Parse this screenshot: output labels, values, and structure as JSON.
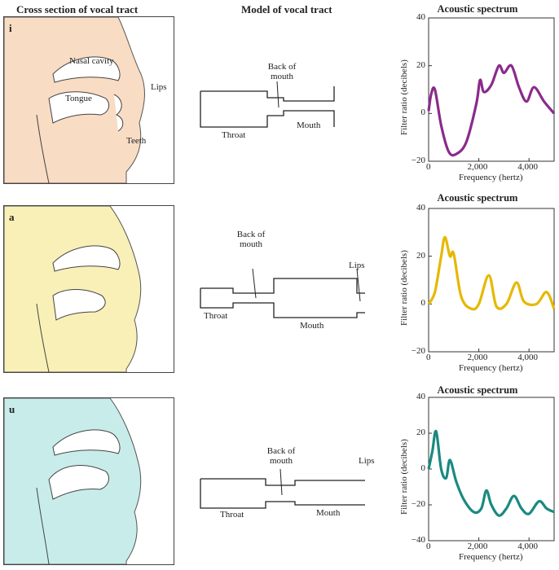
{
  "headers": {
    "col1": "Cross section of vocal tract",
    "col2": "Model of vocal tract",
    "col3": "Acoustic spectrum"
  },
  "rows": [
    {
      "vowel": "i",
      "color": "#f8dcc4",
      "anatomy_labels": [
        "Nasal cavity",
        "Tongue",
        "Lips",
        "Teeth"
      ],
      "model_labels": {
        "back": "Back of mouth",
        "throat": "Throat",
        "mouth": "Mouth"
      }
    },
    {
      "vowel": "a",
      "color": "#f9f0b8",
      "model_labels": {
        "back": "Back of mouth",
        "throat": "Throat",
        "mouth": "Mouth",
        "lips": "Lips"
      }
    },
    {
      "vowel": "u",
      "color": "#c8ecea",
      "model_labels": {
        "back": "Back of mouth",
        "throat": "Throat",
        "mouth": "Mouth",
        "lips": "Lips"
      }
    }
  ],
  "chart_data": [
    {
      "type": "line",
      "title": "Acoustic spectrum",
      "xlabel": "Frequency (hertz)",
      "ylabel": "Filter ratio (decibels)",
      "xlim": [
        0,
        5000
      ],
      "ylim": [
        -20,
        40
      ],
      "xticks": [
        "0",
        "2,000",
        "4,000"
      ],
      "yticks": [
        "40",
        "20",
        "0",
        "−20"
      ],
      "color": "#8b2a8b",
      "x": [
        0,
        100,
        250,
        500,
        800,
        1100,
        1500,
        1900,
        2050,
        2200,
        2500,
        2800,
        3000,
        3300,
        3600,
        3900,
        4200,
        4600,
        5000
      ],
      "y": [
        1,
        8,
        10,
        -5,
        -16,
        -17,
        -12,
        4,
        14,
        9,
        12,
        20,
        17,
        20,
        11,
        5,
        11,
        5,
        0
      ]
    },
    {
      "type": "line",
      "title": "Acoustic spectrum",
      "xlabel": "Frequency (hertz)",
      "ylabel": "Filter ratio (decibels)",
      "xlim": [
        0,
        5000
      ],
      "ylim": [
        -20,
        40
      ],
      "xticks": [
        "0",
        "2,000",
        "4,000"
      ],
      "yticks": [
        "40",
        "20",
        "0",
        "−20"
      ],
      "color": "#e6b800",
      "x": [
        0,
        250,
        500,
        650,
        850,
        1000,
        1300,
        1700,
        2000,
        2400,
        2700,
        3100,
        3500,
        3800,
        4300,
        4700,
        5000
      ],
      "y": [
        0,
        5,
        20,
        28,
        20,
        21,
        3,
        -2,
        0,
        12,
        -1,
        0,
        9,
        1,
        0,
        5,
        -2
      ]
    },
    {
      "type": "line",
      "title": "Acoustic spectrum",
      "xlabel": "Frequency (hertz)",
      "ylabel": "Filter ratio (decibels)",
      "xlim": [
        0,
        5000
      ],
      "ylim": [
        -40,
        40
      ],
      "xticks": [
        "0",
        "2,000",
        "4,000"
      ],
      "yticks": [
        "40",
        "20",
        "0",
        "−20",
        "−40"
      ],
      "color": "#1a8a80",
      "x": [
        0,
        150,
        300,
        500,
        700,
        850,
        1100,
        1400,
        1800,
        2100,
        2300,
        2500,
        2800,
        3100,
        3400,
        3700,
        4000,
        4400,
        4700,
        5000
      ],
      "y": [
        0,
        10,
        21,
        0,
        -5,
        5,
        -7,
        -17,
        -24,
        -22,
        -12,
        -20,
        -26,
        -22,
        -15,
        -22,
        -25,
        -18,
        -22,
        -24
      ]
    }
  ]
}
